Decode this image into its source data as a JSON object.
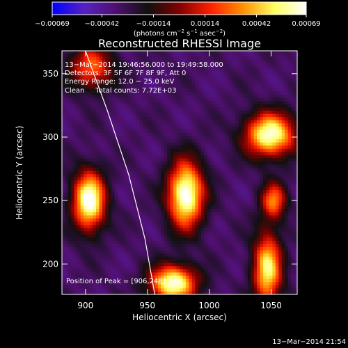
{
  "chart_data": {
    "type": "heatmap",
    "title": "Reconstructed RHESSI Image",
    "xlabel": "Heliocentric X (arcsec)",
    "ylabel": "Heliocentric Y (arcsec)",
    "xlim": [
      881,
      1071
    ],
    "ylim": [
      176,
      368
    ],
    "xticks": [
      {
        "value": 900,
        "label": "900"
      },
      {
        "value": 950,
        "label": "950"
      },
      {
        "value": 1000,
        "label": "1000"
      },
      {
        "value": 1050,
        "label": "1050"
      }
    ],
    "yticks": [
      {
        "value": 200,
        "label": "200"
      },
      {
        "value": 250,
        "label": "250"
      },
      {
        "value": 300,
        "label": "300"
      },
      {
        "value": 350,
        "label": "350"
      }
    ],
    "colorbar": {
      "min": -0.00069,
      "max": 0.00069,
      "ticks": [
        {
          "value": -0.00069,
          "label": "−0.00069"
        },
        {
          "value": -0.00042,
          "label": "−0.00042"
        },
        {
          "value": -0.00014,
          "label": "−0.00014"
        },
        {
          "value": 0.00014,
          "label": "0.00014"
        },
        {
          "value": 0.00042,
          "label": "0.00042"
        },
        {
          "value": 0.00069,
          "label": "0.00069"
        }
      ],
      "unit_parts": [
        "(photons cm",
        "−2",
        " s",
        "−1",
        " asec",
        "−2",
        ")"
      ],
      "colors": [
        "#0000ff",
        "#5522c0",
        "#501070",
        "#101010",
        "#800000",
        "#ff2000",
        "#ff9000",
        "#ffff60",
        "#ffffff"
      ]
    },
    "sources": [
      {
        "x": 903,
        "y": 250,
        "sx": 9,
        "sy": 16,
        "amp": 0.0007
      },
      {
        "x": 981,
        "y": 255,
        "sx": 10,
        "sy": 18,
        "amp": 0.00072
      },
      {
        "x": 1049,
        "y": 302,
        "sx": 14,
        "sy": 12,
        "amp": 0.00064
      },
      {
        "x": 971,
        "y": 185,
        "sx": 13,
        "sy": 10,
        "amp": 0.00066
      },
      {
        "x": 1047,
        "y": 196,
        "sx": 8,
        "sy": 20,
        "amp": 0.00052
      },
      {
        "x": 1052,
        "y": 250,
        "sx": 7,
        "sy": 10,
        "amp": 0.00028
      },
      {
        "x": 905,
        "y": 355,
        "sx": 12,
        "sy": 12,
        "amp": 0.00025
      }
    ],
    "limb": [
      [
        900,
        368
      ],
      [
        918,
        320
      ],
      [
        935,
        270
      ],
      [
        948,
        220
      ],
      [
        956,
        176
      ]
    ],
    "annotations": [
      "13−Mar−2014 19:46:56.000 to 19:49:58.000",
      "Detectors: 3F 5F 6F 7F 8F 9F, Att 0",
      "Energy Range: 12.0 − 25.0 keV",
      "Clean     Total counts: 7.72E+03"
    ],
    "peak_label": "Position of Peak = [906,248]",
    "footer": "13−Mar−2014 21:54"
  }
}
